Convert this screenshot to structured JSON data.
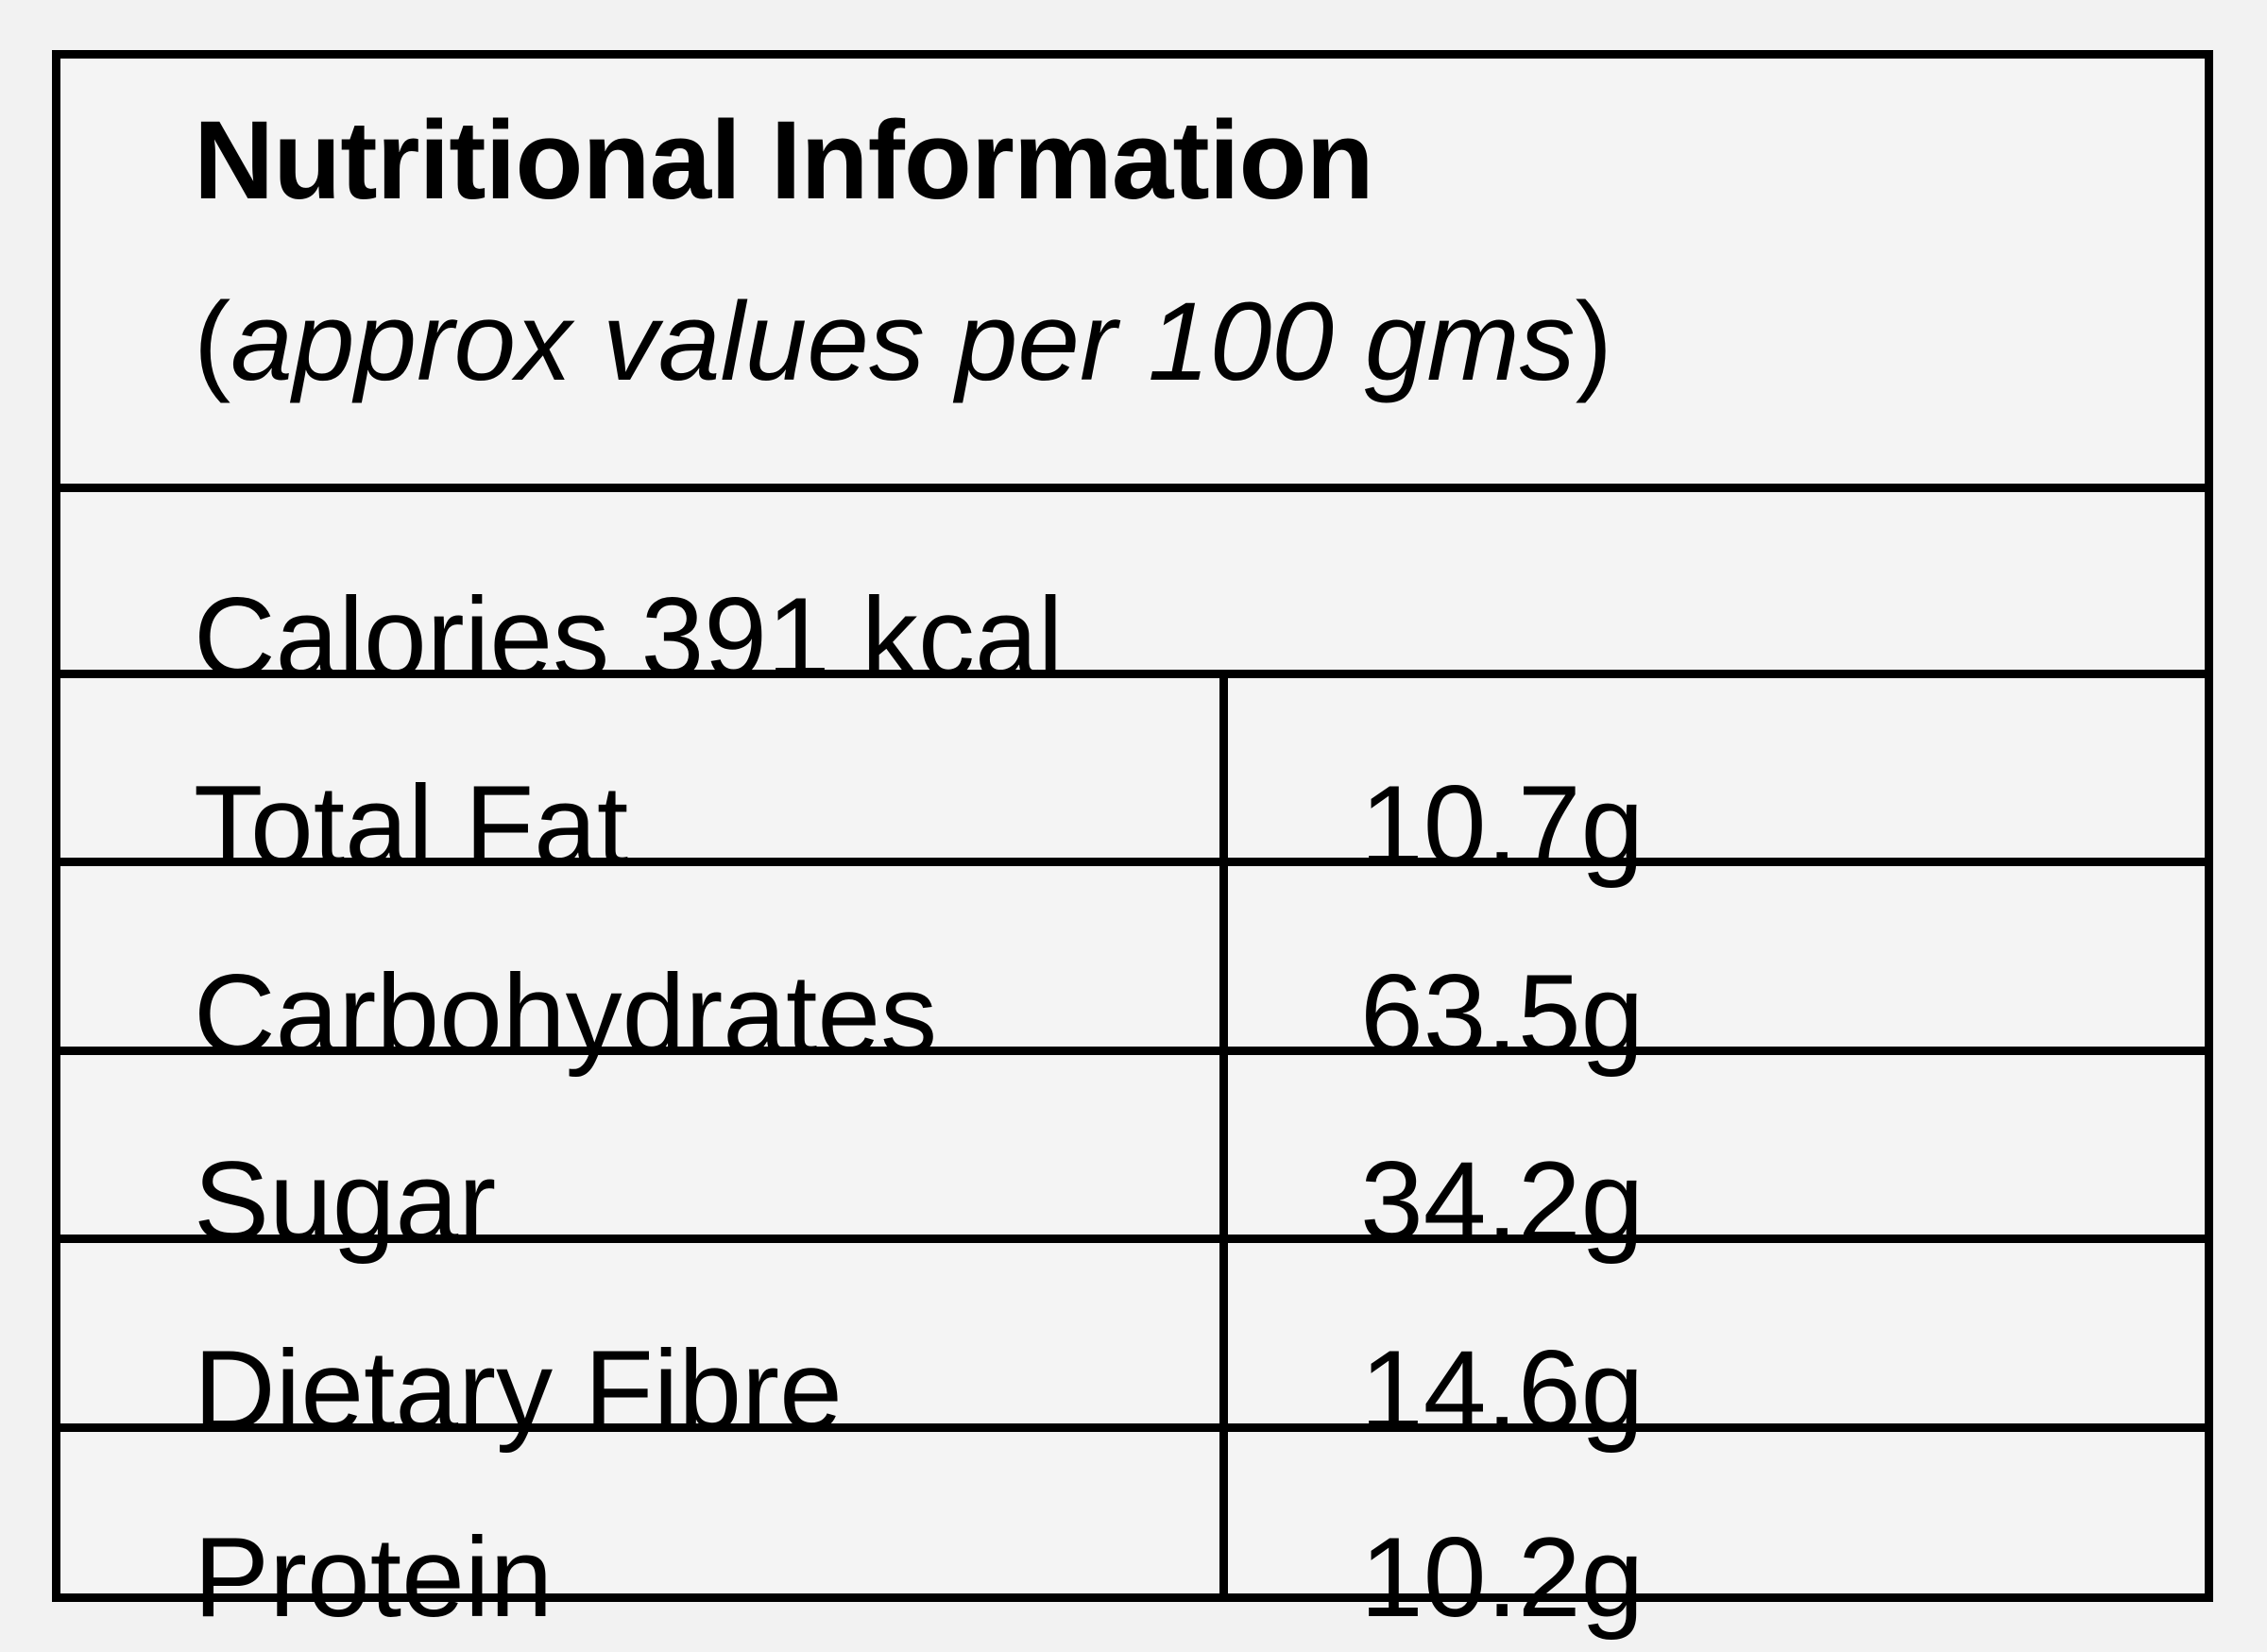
{
  "header": {
    "title": "Nutritional Information",
    "subtitle_open": "(",
    "subtitle_italic": "approx values per 100 gms",
    "subtitle_close": ")"
  },
  "calories": {
    "label": "Calories 391 kcal"
  },
  "rows": [
    {
      "label": "Total Fat",
      "value": "10.7g"
    },
    {
      "label": "Carbohydrates",
      "value": "63.5g"
    },
    {
      "label": "Sugar",
      "value": "34.2g"
    },
    {
      "label": "Dietary Fibre",
      "value": "14.6g"
    },
    {
      "label": "Protein",
      "value": "10.2g"
    }
  ]
}
